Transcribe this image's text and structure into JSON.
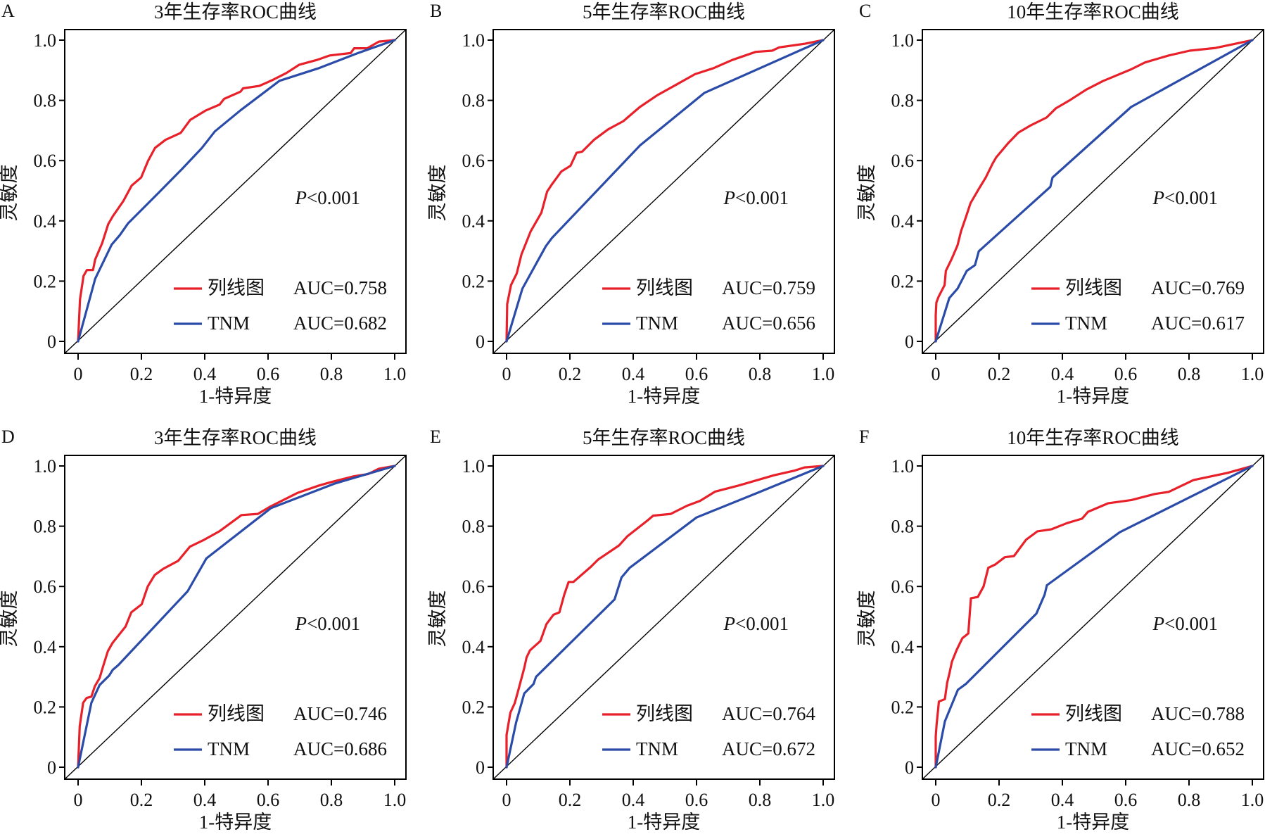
{
  "figure": {
    "colors": {
      "nomogram": "#e8202a",
      "tnm": "#2a4ba8",
      "reference": "#000000",
      "axis": "#000000"
    }
  },
  "chart_data": [
    {
      "panel_label": "A",
      "type": "line",
      "title": "3年生存率ROC曲线",
      "xlabel": "1-特异度",
      "ylabel": "灵敏度",
      "xlim": [
        0,
        1
      ],
      "ylim": [
        0,
        1
      ],
      "xticks": [
        "0",
        "0.2",
        "0.4",
        "0.6",
        "0.8",
        "1.0"
      ],
      "yticks": [
        "0",
        "0.2",
        "0.4",
        "0.6",
        "0.8",
        "1.0"
      ],
      "annotation": {
        "italic": "P",
        "text": "<0.001"
      },
      "legend_position": "bottom-right",
      "series": [
        {
          "name": "列线图",
          "auc_label": "AUC=0.758",
          "auc": 0.758,
          "color_key": "nomogram",
          "x": [
            0,
            0.006,
            0.017,
            0.028,
            0.047,
            0.054,
            0.076,
            0.095,
            0.11,
            0.143,
            0.169,
            0.199,
            0.221,
            0.243,
            0.276,
            0.324,
            0.354,
            0.402,
            0.447,
            0.461,
            0.513,
            0.521,
            0.572,
            0.613,
            0.658,
            0.698,
            0.754,
            0.795,
            0.861,
            0.872,
            0.913,
            0.95,
            1
          ],
          "y": [
            0,
            0.139,
            0.217,
            0.237,
            0.237,
            0.272,
            0.326,
            0.389,
            0.416,
            0.466,
            0.517,
            0.544,
            0.599,
            0.642,
            0.669,
            0.692,
            0.735,
            0.766,
            0.786,
            0.805,
            0.829,
            0.84,
            0.848,
            0.867,
            0.891,
            0.918,
            0.934,
            0.949,
            0.957,
            0.973,
            0.973,
            0.995,
            1
          ]
        },
        {
          "name": "TNM",
          "auc_label": "AUC=0.682",
          "auc": 0.682,
          "color_key": "tnm",
          "x": [
            0,
            0.054,
            0.106,
            0.132,
            0.158,
            0.254,
            0.328,
            0.391,
            0.432,
            0.513,
            0.636,
            0.758,
            0.884,
            1
          ],
          "y": [
            0,
            0.208,
            0.321,
            0.353,
            0.392,
            0.493,
            0.572,
            0.642,
            0.697,
            0.767,
            0.865,
            0.906,
            0.957,
            1
          ]
        }
      ]
    },
    {
      "panel_label": "B",
      "type": "line",
      "title": "5年生存率ROC曲线",
      "xlabel": "1-特异度",
      "ylabel": "灵敏度",
      "xlim": [
        0,
        1
      ],
      "ylim": [
        0,
        1
      ],
      "xticks": [
        "0",
        "0.2",
        "0.4",
        "0.6",
        "0.8",
        "1.0"
      ],
      "yticks": [
        "0",
        "0.2",
        "0.4",
        "0.6",
        "0.8",
        "1.0"
      ],
      "annotation": {
        "italic": "P",
        "text": "<0.001"
      },
      "legend_position": "bottom-right",
      "series": [
        {
          "name": "列线图",
          "auc_label": "AUC=0.759",
          "auc": 0.759,
          "color_key": "nomogram",
          "x": [
            0,
            0.002,
            0.014,
            0.032,
            0.047,
            0.076,
            0.11,
            0.128,
            0.143,
            0.173,
            0.202,
            0.221,
            0.239,
            0.276,
            0.321,
            0.369,
            0.421,
            0.476,
            0.536,
            0.595,
            0.654,
            0.713,
            0.787,
            0.839,
            0.861,
            0.943,
            1
          ],
          "y": [
            0,
            0.124,
            0.187,
            0.225,
            0.288,
            0.365,
            0.427,
            0.497,
            0.521,
            0.564,
            0.583,
            0.626,
            0.63,
            0.669,
            0.704,
            0.731,
            0.778,
            0.817,
            0.852,
            0.887,
            0.907,
            0.934,
            0.961,
            0.965,
            0.976,
            0.988,
            1
          ]
        },
        {
          "name": "TNM",
          "auc_label": "AUC=0.656",
          "auc": 0.656,
          "color_key": "tnm",
          "x": [
            0,
            0.05,
            0.124,
            0.143,
            0.421,
            0.625,
            1
          ],
          "y": [
            0,
            0.175,
            0.316,
            0.343,
            0.65,
            0.825,
            1
          ]
        }
      ]
    },
    {
      "panel_label": "C",
      "type": "line",
      "title": "10年生存率ROC曲线",
      "xlabel": "1-特异度",
      "ylabel": "灵敏度",
      "xlim": [
        0,
        1
      ],
      "ylim": [
        0,
        1
      ],
      "xticks": [
        "0",
        "0.2",
        "0.4",
        "0.6",
        "0.8",
        "1.0"
      ],
      "yticks": [
        "0",
        "0.2",
        "0.4",
        "0.6",
        "0.8",
        "1.0"
      ],
      "annotation": {
        "italic": "P",
        "text": "<0.001"
      },
      "legend_position": "bottom-right",
      "series": [
        {
          "name": "列线图",
          "auc_label": "AUC=0.769",
          "auc": 0.769,
          "color_key": "nomogram",
          "x": [
            0,
            0,
            0.002,
            0.009,
            0.028,
            0.032,
            0.05,
            0.069,
            0.08,
            0.095,
            0.11,
            0.136,
            0.158,
            0.18,
            0.191,
            0.228,
            0.261,
            0.298,
            0.35,
            0.38,
            0.424,
            0.476,
            0.528,
            0.617,
            0.661,
            0.736,
            0.802,
            0.884,
            1
          ],
          "y": [
            0,
            0.086,
            0.129,
            0.148,
            0.187,
            0.234,
            0.273,
            0.319,
            0.366,
            0.412,
            0.459,
            0.506,
            0.544,
            0.591,
            0.611,
            0.657,
            0.693,
            0.716,
            0.743,
            0.774,
            0.801,
            0.836,
            0.864,
            0.903,
            0.926,
            0.949,
            0.965,
            0.974,
            1
          ]
        },
        {
          "name": "TNM",
          "auc_label": "AUC=0.617",
          "auc": 0.617,
          "color_key": "tnm",
          "x": [
            0,
            0.043,
            0.069,
            0.098,
            0.124,
            0.136,
            0.362,
            0.369,
            0.617,
            1
          ],
          "y": [
            0,
            0.144,
            0.175,
            0.234,
            0.253,
            0.299,
            0.513,
            0.544,
            0.778,
            1
          ]
        }
      ]
    },
    {
      "panel_label": "D",
      "type": "line",
      "title": "3年生存率ROC曲线",
      "xlabel": "1-特异度",
      "ylabel": "灵敏度",
      "xlim": [
        0,
        1
      ],
      "ylim": [
        0,
        1
      ],
      "xticks": [
        "0",
        "0.2",
        "0.4",
        "0.6",
        "0.8",
        "1.0"
      ],
      "yticks": [
        "0",
        "0.2",
        "0.4",
        "0.6",
        "0.8",
        "1.0"
      ],
      "annotation": {
        "italic": "P",
        "text": "<0.001"
      },
      "legend_position": "bottom-right",
      "series": [
        {
          "name": "列线图",
          "auc_label": "AUC=0.746",
          "auc": 0.746,
          "color_key": "nomogram",
          "x": [
            0,
            0.005,
            0.016,
            0.027,
            0.042,
            0.053,
            0.068,
            0.079,
            0.094,
            0.109,
            0.15,
            0.168,
            0.201,
            0.22,
            0.242,
            0.268,
            0.316,
            0.353,
            0.398,
            0.446,
            0.516,
            0.568,
            0.605,
            0.694,
            0.761,
            0.798,
            0.872,
            0.916,
            0.95,
            1
          ],
          "y": [
            0,
            0.136,
            0.214,
            0.23,
            0.234,
            0.269,
            0.296,
            0.335,
            0.385,
            0.413,
            0.467,
            0.514,
            0.541,
            0.6,
            0.638,
            0.658,
            0.685,
            0.732,
            0.755,
            0.783,
            0.837,
            0.841,
            0.864,
            0.911,
            0.935,
            0.946,
            0.966,
            0.973,
            0.991,
            1
          ]
        },
        {
          "name": "TNM",
          "auc_label": "AUC=0.686",
          "auc": 0.686,
          "color_key": "tnm",
          "x": [
            0,
            0.042,
            0.068,
            0.098,
            0.109,
            0.127,
            0.346,
            0.405,
            0.609,
            0.812,
            1
          ],
          "y": [
            0,
            0.214,
            0.273,
            0.304,
            0.323,
            0.339,
            0.584,
            0.693,
            0.86,
            0.942,
            1
          ]
        }
      ]
    },
    {
      "panel_label": "E",
      "type": "line",
      "title": "5年生存率ROC曲线",
      "xlabel": "1-特异度",
      "ylabel": "灵敏度",
      "xlim": [
        0,
        1
      ],
      "ylim": [
        0,
        1
      ],
      "xticks": [
        "0",
        "0.2",
        "0.4",
        "0.6",
        "0.8",
        "1.0"
      ],
      "yticks": [
        "0",
        "0.2",
        "0.4",
        "0.6",
        "0.8",
        "1.0"
      ],
      "annotation": {
        "italic": "P",
        "text": "<0.001"
      },
      "legend_position": "bottom-right",
      "series": [
        {
          "name": "列线图",
          "auc_label": "AUC=0.764",
          "auc": 0.764,
          "color_key": "nomogram",
          "x": [
            0,
            0,
            0.012,
            0.026,
            0.037,
            0.056,
            0.063,
            0.074,
            0.107,
            0.126,
            0.148,
            0.167,
            0.182,
            0.196,
            0.211,
            0.267,
            0.289,
            0.355,
            0.382,
            0.444,
            0.463,
            0.519,
            0.57,
            0.611,
            0.659,
            0.733,
            0.844,
            0.911,
            0.941,
            1
          ],
          "y": [
            0,
            0.107,
            0.181,
            0.213,
            0.255,
            0.33,
            0.364,
            0.388,
            0.419,
            0.475,
            0.506,
            0.514,
            0.572,
            0.615,
            0.615,
            0.666,
            0.689,
            0.736,
            0.767,
            0.818,
            0.835,
            0.841,
            0.868,
            0.884,
            0.915,
            0.935,
            0.969,
            0.985,
            0.995,
            1
          ]
        },
        {
          "name": "TNM",
          "auc_label": "AUC=0.672",
          "auc": 0.672,
          "color_key": "tnm",
          "x": [
            0,
            0.03,
            0.056,
            0.085,
            0.093,
            0.341,
            0.363,
            0.389,
            0.6,
            0.793,
            1
          ],
          "y": [
            0,
            0.148,
            0.245,
            0.276,
            0.3,
            0.557,
            0.63,
            0.662,
            0.829,
            0.911,
            1
          ]
        }
      ]
    },
    {
      "panel_label": "F",
      "type": "line",
      "title": "10年生存率ROC曲线",
      "xlabel": "1-特异度",
      "ylabel": "灵敏度",
      "xlim": [
        0,
        1
      ],
      "ylim": [
        0,
        1
      ],
      "xticks": [
        "0",
        "0.2",
        "0.4",
        "0.6",
        "0.8",
        "1.0"
      ],
      "yticks": [
        "0",
        "0.2",
        "0.4",
        "0.6",
        "0.8",
        "1.0"
      ],
      "annotation": {
        "italic": "P",
        "text": "<0.001"
      },
      "legend_position": "bottom-right",
      "series": [
        {
          "name": "列线图",
          "auc_label": "AUC=0.788",
          "auc": 0.788,
          "color_key": "nomogram",
          "x": [
            0,
            0,
            0.003,
            0.007,
            0.01,
            0.029,
            0.036,
            0.044,
            0.051,
            0.066,
            0.084,
            0.103,
            0.111,
            0.133,
            0.151,
            0.166,
            0.188,
            0.218,
            0.247,
            0.285,
            0.321,
            0.366,
            0.414,
            0.462,
            0.481,
            0.544,
            0.618,
            0.692,
            0.736,
            0.814,
            0.922,
            1
          ],
          "y": [
            0,
            0.101,
            0.144,
            0.187,
            0.218,
            0.226,
            0.28,
            0.315,
            0.35,
            0.389,
            0.428,
            0.444,
            0.561,
            0.565,
            0.6,
            0.662,
            0.673,
            0.697,
            0.701,
            0.755,
            0.783,
            0.79,
            0.81,
            0.825,
            0.848,
            0.876,
            0.887,
            0.907,
            0.914,
            0.953,
            0.977,
            1
          ]
        },
        {
          "name": "TNM",
          "auc_label": "AUC=0.652",
          "auc": 0.652,
          "color_key": "tnm",
          "x": [
            0,
            0.029,
            0.07,
            0.096,
            0.318,
            0.344,
            0.351,
            0.581,
            1
          ],
          "y": [
            0,
            0.152,
            0.257,
            0.277,
            0.51,
            0.573,
            0.604,
            0.78,
            1
          ]
        }
      ]
    }
  ]
}
